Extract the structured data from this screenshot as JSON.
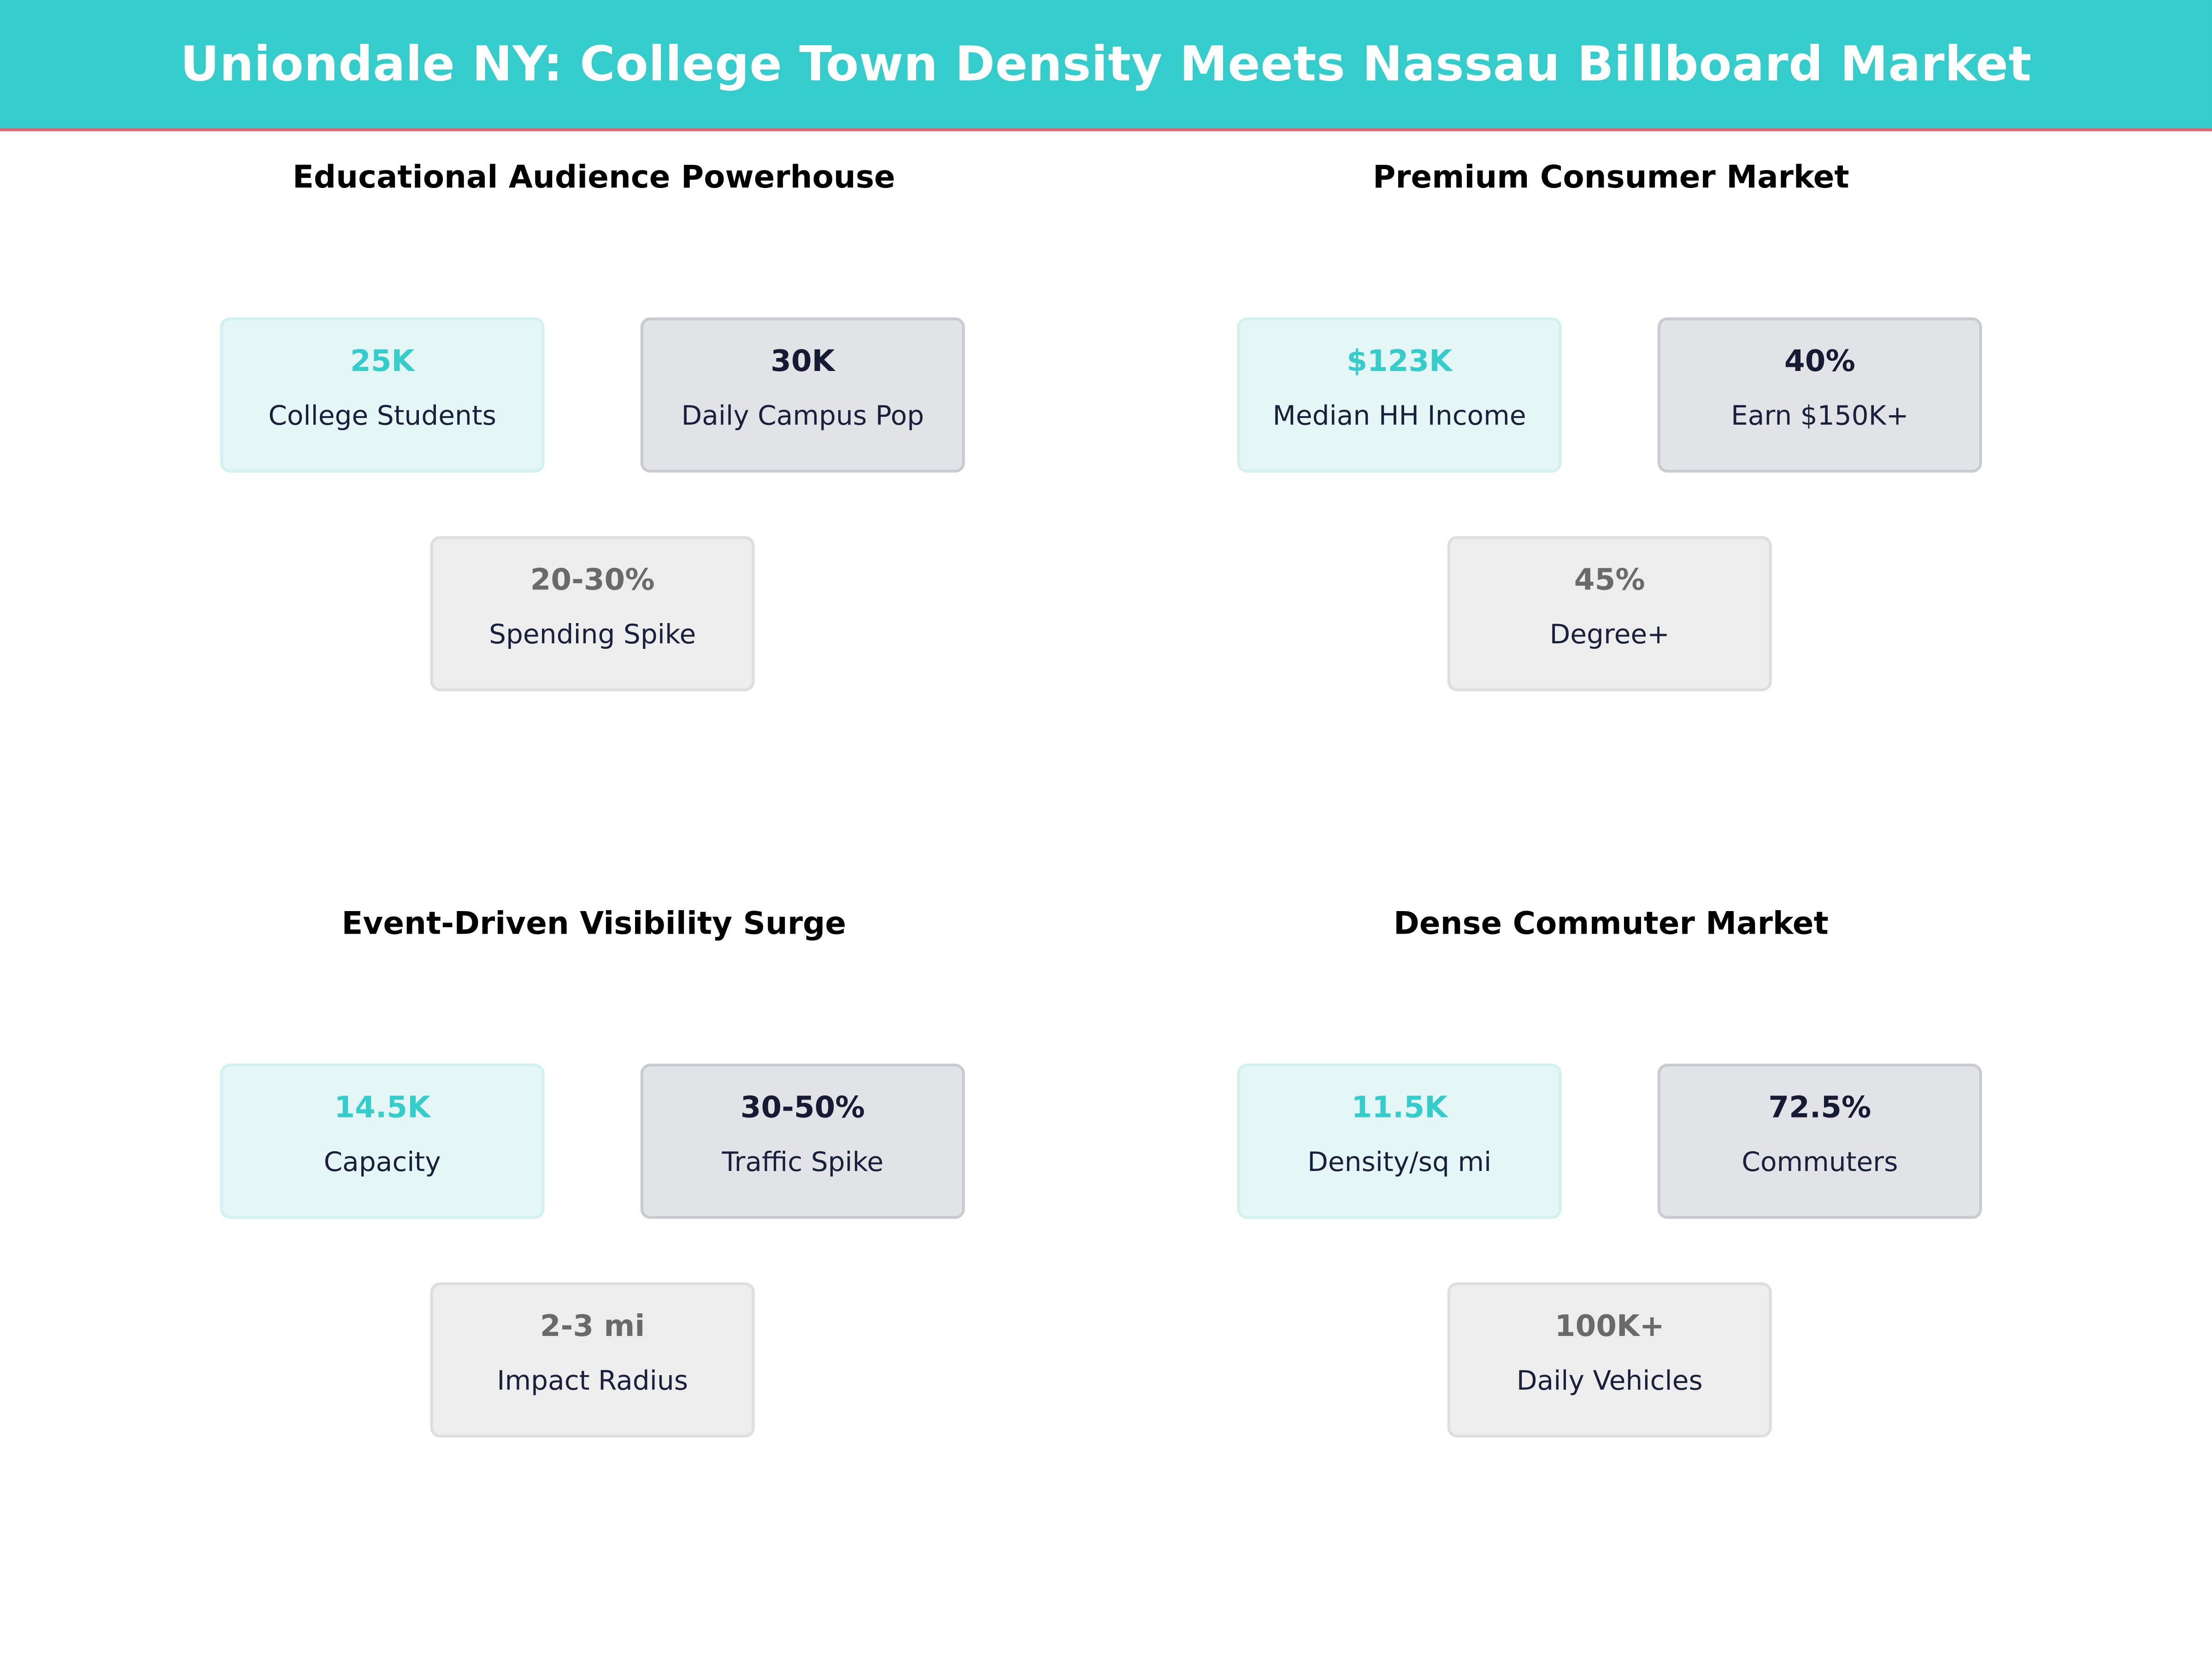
{
  "header": {
    "title": "Uniondale NY: College Town Density Meets Nassau Billboard Market"
  },
  "colors": {
    "header_bg": "#35CCCC",
    "header_rule": "#EC5F72",
    "accent": "#35CCCC",
    "dark": "#161A33",
    "muted": "#6A6A6A"
  },
  "panels": [
    {
      "title": "Educational Audience Powerhouse",
      "cards": [
        {
          "value": "25K",
          "label": "College Students"
        },
        {
          "value": "30K",
          "label": "Daily Campus Pop"
        },
        {
          "value": "20-30%",
          "label": "Spending Spike"
        }
      ]
    },
    {
      "title": "Premium Consumer Market",
      "cards": [
        {
          "value": "$123K",
          "label": "Median HH Income"
        },
        {
          "value": "40%",
          "label": "Earn $150K+"
        },
        {
          "value": "45%",
          "label": "Degree+"
        }
      ]
    },
    {
      "title": "Event-Driven Visibility Surge",
      "cards": [
        {
          "value": "14.5K",
          "label": "Capacity"
        },
        {
          "value": "30-50%",
          "label": "Traffic Spike"
        },
        {
          "value": "2-3 mi",
          "label": "Impact Radius"
        }
      ]
    },
    {
      "title": "Dense Commuter Market",
      "cards": [
        {
          "value": "11.5K",
          "label": "Density/sq mi"
        },
        {
          "value": "72.5%",
          "label": "Commuters"
        },
        {
          "value": "100K+",
          "label": "Daily Vehicles"
        }
      ]
    }
  ]
}
